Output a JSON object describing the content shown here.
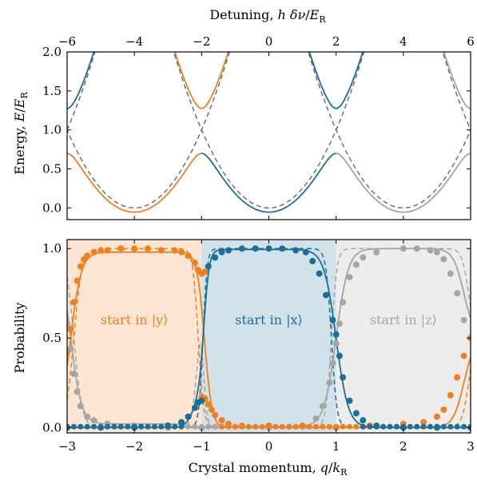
{
  "chart_data": [
    {
      "type": "line",
      "title": "",
      "xlabel": "Crystal momentum, q/k_R",
      "top_xlabel": "Detuning, h δν/E_R",
      "ylabel": "Energy, E/E_R",
      "xlim": [
        -3,
        3
      ],
      "top_xlim": [
        -6,
        6
      ],
      "ylim": [
        -0.15,
        2.0
      ],
      "x_ticks": [
        "−3",
        "−2",
        "−1",
        "0",
        "1",
        "2",
        "3"
      ],
      "top_x_ticks": [
        "−6",
        "−4",
        "−2",
        "0",
        "2",
        "4",
        "6"
      ],
      "y_ticks": [
        "0.0",
        "0.5",
        "1.0",
        "1.5",
        "2.0"
      ],
      "lattice_coupling_gap": 0.56,
      "series": [
        {
          "style": "solid",
          "color": "#f07f1e",
          "description": "band segment near q=-2 (state y)"
        },
        {
          "style": "solid",
          "color": "#1a6f99",
          "description": "band segment near q=0 (state x)"
        },
        {
          "style": "solid",
          "color": "#a5a5a5",
          "description": "band segment near q=+2 (state z)"
        },
        {
          "style": "dashed",
          "color": "#666666",
          "description": "free-particle parabolas (q-2n)^2"
        }
      ]
    },
    {
      "type": "scatter",
      "xlabel": "Crystal momentum, q/k_R",
      "ylabel": "Probability",
      "xlim": [
        -3,
        3
      ],
      "ylim": [
        -0.03,
        1.05
      ],
      "x_ticks": [
        "−3",
        "−2",
        "−1",
        "0",
        "1",
        "2",
        "3"
      ],
      "y_ticks": [
        "0.0",
        "0.5",
        "1.0"
      ],
      "regions": [
        {
          "label": "start in |y⟩",
          "x_range": [
            -3,
            -1
          ],
          "color": "#f07f1e"
        },
        {
          "label": "start in |x⟩",
          "x_range": [
            -1,
            1
          ],
          "color": "#1a6f99"
        },
        {
          "label": "start in |z⟩",
          "x_range": [
            1,
            3
          ],
          "color": "#a5a5a5"
        }
      ],
      "series": [
        {
          "color": "#f07f1e",
          "points": [
            [
              -3,
              0.42
            ],
            [
              -2.95,
              0.55
            ],
            [
              -2.9,
              0.7
            ],
            [
              -2.85,
              0.82
            ],
            [
              -2.8,
              0.9
            ],
            [
              -2.75,
              0.94
            ],
            [
              -2.7,
              0.96
            ],
            [
              -2.6,
              0.98
            ],
            [
              -2.5,
              0.99
            ],
            [
              -2.4,
              0.99
            ],
            [
              -2.2,
              1.0
            ],
            [
              -2.0,
              1.0
            ],
            [
              -1.8,
              1.0
            ],
            [
              -1.6,
              0.99
            ],
            [
              -1.4,
              0.99
            ],
            [
              -1.3,
              0.98
            ],
            [
              -1.2,
              0.96
            ],
            [
              -1.1,
              0.92
            ],
            [
              -1.05,
              0.88
            ],
            [
              -1.0,
              0.86
            ],
            [
              -0.95,
              0.87
            ],
            [
              -0.9,
              0.9
            ],
            [
              -1.0,
              0.17
            ],
            [
              -0.95,
              0.16
            ],
            [
              -0.9,
              0.13
            ],
            [
              -0.85,
              0.1
            ],
            [
              -0.8,
              0.07
            ],
            [
              -0.7,
              0.04
            ],
            [
              -0.6,
              0.02
            ],
            [
              -0.4,
              0.01
            ],
            [
              0.0,
              0.01
            ],
            [
              0.5,
              0.01
            ],
            [
              1.0,
              0.0
            ],
            [
              1.5,
              0.01
            ],
            [
              2.0,
              0.02
            ],
            [
              2.3,
              0.03
            ],
            [
              2.5,
              0.06
            ],
            [
              2.6,
              0.1
            ],
            [
              2.7,
              0.18
            ],
            [
              2.8,
              0.28
            ],
            [
              2.9,
              0.4
            ],
            [
              3.0,
              0.5
            ]
          ]
        },
        {
          "color": "#1a6f99",
          "points": [
            [
              -3,
              0.0
            ],
            [
              -2.5,
              0.0
            ],
            [
              -2.0,
              0.0
            ],
            [
              -1.5,
              0.01
            ],
            [
              -1.3,
              0.03
            ],
            [
              -1.2,
              0.06
            ],
            [
              -1.1,
              0.11
            ],
            [
              -1.05,
              0.14
            ],
            [
              -1.0,
              0.15
            ],
            [
              -0.9,
              0.9
            ],
            [
              -0.8,
              0.95
            ],
            [
              -0.7,
              0.98
            ],
            [
              -0.6,
              0.99
            ],
            [
              -0.4,
              1.0
            ],
            [
              -0.2,
              1.0
            ],
            [
              0.0,
              1.0
            ],
            [
              0.2,
              1.0
            ],
            [
              0.4,
              0.99
            ],
            [
              0.55,
              0.98
            ],
            [
              0.65,
              0.93
            ],
            [
              0.75,
              0.86
            ],
            [
              0.85,
              0.74
            ],
            [
              0.95,
              0.6
            ],
            [
              1.0,
              0.52
            ],
            [
              1.05,
              0.4
            ],
            [
              1.1,
              0.28
            ],
            [
              1.2,
              0.15
            ],
            [
              1.3,
              0.08
            ],
            [
              1.4,
              0.04
            ],
            [
              1.6,
              0.01
            ],
            [
              2.0,
              0.0
            ],
            [
              2.5,
              0.0
            ],
            [
              3.0,
              0.0
            ]
          ]
        },
        {
          "color": "#a5a5a5",
          "points": [
            [
              -3,
              0.58
            ],
            [
              -2.95,
              0.44
            ],
            [
              -2.9,
              0.3
            ],
            [
              -2.85,
              0.2
            ],
            [
              -2.8,
              0.12
            ],
            [
              -2.7,
              0.06
            ],
            [
              -2.6,
              0.04
            ],
            [
              -2.4,
              0.02
            ],
            [
              -2.0,
              0.01
            ],
            [
              -1.5,
              0.0
            ],
            [
              -1.0,
              0.0
            ],
            [
              0.0,
              0.0
            ],
            [
              0.5,
              0.01
            ],
            [
              0.7,
              0.05
            ],
            [
              0.8,
              0.12
            ],
            [
              0.9,
              0.25
            ],
            [
              0.95,
              0.36
            ],
            [
              1.0,
              0.47
            ],
            [
              1.05,
              0.58
            ],
            [
              1.1,
              0.7
            ],
            [
              1.2,
              0.84
            ],
            [
              1.3,
              0.91
            ],
            [
              1.4,
              0.95
            ],
            [
              1.6,
              0.98
            ],
            [
              2.0,
              1.0
            ],
            [
              2.2,
              1.0
            ],
            [
              2.4,
              0.99
            ],
            [
              2.5,
              0.98
            ],
            [
              2.6,
              0.94
            ],
            [
              2.7,
              0.86
            ],
            [
              2.8,
              0.75
            ],
            [
              2.9,
              0.6
            ],
            [
              3.0,
              0.5
            ]
          ]
        }
      ]
    }
  ]
}
